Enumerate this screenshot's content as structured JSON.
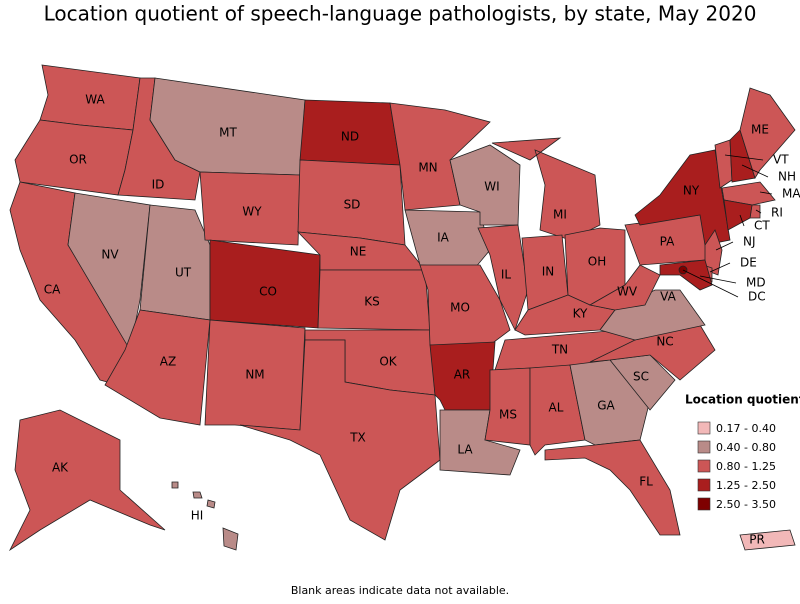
{
  "title": "Location quotient of speech-language pathologists, by state, May 2020",
  "legend": {
    "title": "Location quotient",
    "classes": [
      {
        "label": "0.17 - 0.40",
        "color": "#f2b8b8"
      },
      {
        "label": "0.40 - 0.80",
        "color": "#b98b88"
      },
      {
        "label": "0.80 - 1.25",
        "color": "#cc5656"
      },
      {
        "label": "1.25 - 2.50",
        "color": "#a91e1e"
      },
      {
        "label": "2.50 - 3.50",
        "color": "#7e0000"
      }
    ]
  },
  "states": [
    {
      "label": "WA",
      "class": "0.80 - 1.25"
    },
    {
      "label": "OR",
      "class": "0.80 - 1.25"
    },
    {
      "label": "CA",
      "class": "0.80 - 1.25"
    },
    {
      "label": "ID",
      "class": "0.80 - 1.25"
    },
    {
      "label": "NV",
      "class": "0.40 - 0.80"
    },
    {
      "label": "UT",
      "class": "0.40 - 0.80"
    },
    {
      "label": "AZ",
      "class": "0.80 - 1.25"
    },
    {
      "label": "MT",
      "class": "0.40 - 0.80"
    },
    {
      "label": "WY",
      "class": "0.80 - 1.25"
    },
    {
      "label": "CO",
      "class": "1.25 - 2.50"
    },
    {
      "label": "NM",
      "class": "0.80 - 1.25"
    },
    {
      "label": "ND",
      "class": "1.25 - 2.50"
    },
    {
      "label": "SD",
      "class": "0.80 - 1.25"
    },
    {
      "label": "NE",
      "class": "0.80 - 1.25"
    },
    {
      "label": "KS",
      "class": "0.80 - 1.25"
    },
    {
      "label": "OK",
      "class": "0.80 - 1.25"
    },
    {
      "label": "TX",
      "class": "0.80 - 1.25"
    },
    {
      "label": "MN",
      "class": "0.80 - 1.25"
    },
    {
      "label": "IA",
      "class": "0.40 - 0.80"
    },
    {
      "label": "MO",
      "class": "0.80 - 1.25"
    },
    {
      "label": "AR",
      "class": "1.25 - 2.50"
    },
    {
      "label": "LA",
      "class": "0.40 - 0.80"
    },
    {
      "label": "WI",
      "class": "0.40 - 0.80"
    },
    {
      "label": "IL",
      "class": "0.80 - 1.25"
    },
    {
      "label": "MI",
      "class": "0.80 - 1.25"
    },
    {
      "label": "IN",
      "class": "0.80 - 1.25"
    },
    {
      "label": "OH",
      "class": "0.80 - 1.25"
    },
    {
      "label": "KY",
      "class": "0.80 - 1.25"
    },
    {
      "label": "TN",
      "class": "0.80 - 1.25"
    },
    {
      "label": "MS",
      "class": "0.80 - 1.25"
    },
    {
      "label": "AL",
      "class": "0.80 - 1.25"
    },
    {
      "label": "GA",
      "class": "0.40 - 0.80"
    },
    {
      "label": "FL",
      "class": "0.80 - 1.25"
    },
    {
      "label": "SC",
      "class": "0.40 - 0.80"
    },
    {
      "label": "NC",
      "class": "0.80 - 1.25"
    },
    {
      "label": "VA",
      "class": "0.40 - 0.80"
    },
    {
      "label": "WV",
      "class": "0.80 - 1.25"
    },
    {
      "label": "PA",
      "class": "0.80 - 1.25"
    },
    {
      "label": "NY",
      "class": "1.25 - 2.50"
    },
    {
      "label": "VT",
      "class": "0.80 - 1.25"
    },
    {
      "label": "NH",
      "class": "1.25 - 2.50"
    },
    {
      "label": "ME",
      "class": "0.80 - 1.25"
    },
    {
      "label": "MA",
      "class": "0.80 - 1.25"
    },
    {
      "label": "RI",
      "class": "0.80 - 1.25"
    },
    {
      "label": "CT",
      "class": "1.25 - 2.50"
    },
    {
      "label": "NJ",
      "class": "0.80 - 1.25"
    },
    {
      "label": "DE",
      "class": "0.80 - 1.25"
    },
    {
      "label": "MD",
      "class": "1.25 - 2.50"
    },
    {
      "label": "DC",
      "class": "2.50 - 3.50"
    },
    {
      "label": "AK",
      "class": "0.80 - 1.25"
    },
    {
      "label": "HI",
      "class": "0.40 - 0.80"
    },
    {
      "label": "PR",
      "class": "0.17 - 0.40"
    }
  ],
  "note": "Blank areas indicate data not available."
}
